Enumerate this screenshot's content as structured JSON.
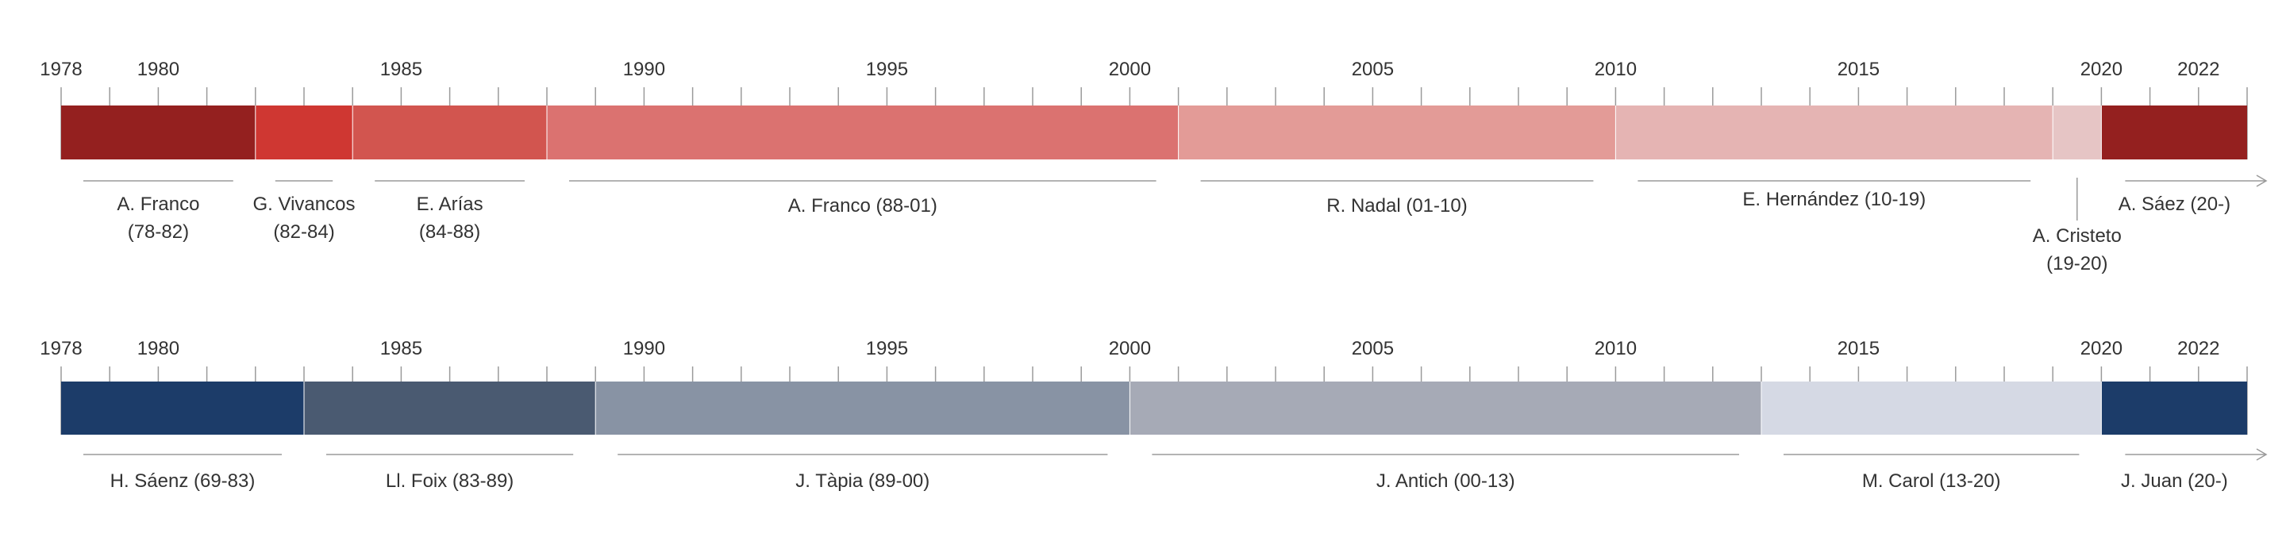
{
  "chart_data": {
    "type": "timeline",
    "title": "",
    "x_range": [
      1978,
      2024
    ],
    "timelines": [
      {
        "tick_labels": [
          "1978",
          "1980",
          "1985",
          "1990",
          "1995",
          "2000",
          "2005",
          "2010",
          "2015",
          "2020",
          "2022"
        ],
        "periods": [
          {
            "start": 1978,
            "end": 1982,
            "color": "#94201f",
            "lines": [
              "A. Franco",
              "(78-82)"
            ]
          },
          {
            "start": 1982,
            "end": 1984,
            "color": "#cf3732",
            "lines": [
              "G. Vivancos",
              "(82-84)"
            ]
          },
          {
            "start": 1984,
            "end": 1988,
            "color": "#d2554f",
            "lines": [
              "E. Arías",
              "(84-88)"
            ]
          },
          {
            "start": 1988,
            "end": 2001,
            "color": "#db7270",
            "lines": [
              "A. Franco (88-01)"
            ]
          },
          {
            "start": 2001,
            "end": 2010,
            "color": "#e39b97",
            "lines": [
              "R. Nadal (01-10)"
            ]
          },
          {
            "start": 2010,
            "end": 2019,
            "color": "#e5b4b3",
            "lines": [
              "E. Hernández (10-19)"
            ]
          },
          {
            "start": 2019,
            "end": 2020,
            "color": "#e6c5c5",
            "lines": [
              "A. Cristeto",
              "(19-20)"
            ]
          },
          {
            "start": 2020,
            "end": 2023,
            "color": "#94201f",
            "lines": [
              "A. Sáez (20-)"
            ]
          }
        ]
      },
      {
        "tick_labels": [
          "1978",
          "1980",
          "1985",
          "1990",
          "1995",
          "2000",
          "2005",
          "2010",
          "2015",
          "2020",
          "2022"
        ],
        "periods": [
          {
            "start": 1978,
            "end": 1983,
            "color": "#1c3c69",
            "lines": [
              "H. Sáenz (69-83)"
            ]
          },
          {
            "start": 1983,
            "end": 1989,
            "color": "#4a5a71",
            "lines": [
              "Ll. Foix (83-89)"
            ]
          },
          {
            "start": 1989,
            "end": 2000,
            "color": "#8893a4",
            "lines": [
              "J. Tàpia (89-00)"
            ]
          },
          {
            "start": 2000,
            "end": 2013,
            "color": "#a6aab6",
            "lines": [
              "J. Antich (00-13)"
            ]
          },
          {
            "start": 2013,
            "end": 2020,
            "color": "#d5d9e4",
            "lines": [
              "M. Carol (13-20)"
            ]
          },
          {
            "start": 2020,
            "end": 2023,
            "color": "#1c3c69",
            "lines": [
              "J. Juan (20-)"
            ]
          }
        ]
      }
    ]
  }
}
